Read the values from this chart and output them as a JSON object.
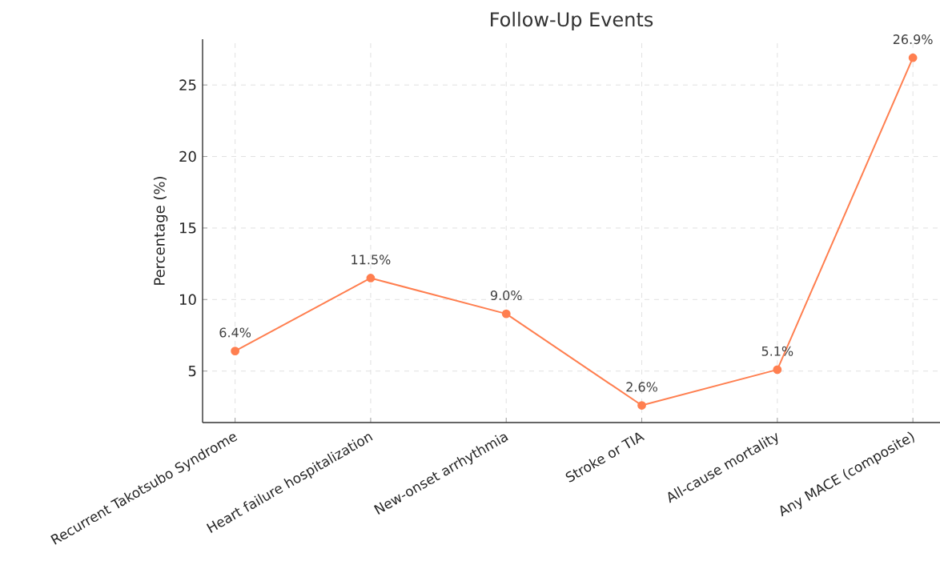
{
  "chart_data": {
    "type": "line",
    "title": "Follow-Up Events",
    "ylabel": "Percentage (%)",
    "categories": [
      "Recurrent Takotsubo Syndrome",
      "Heart failure hospitalization",
      "New-onset arrhythmia",
      "Stroke or TIA",
      "All-cause mortality",
      "Any MACE (composite)"
    ],
    "values": [
      6.4,
      11.5,
      9.0,
      2.6,
      5.1,
      26.9
    ],
    "value_labels": [
      "6.4%",
      "11.5%",
      "9.0%",
      "2.6%",
      "5.1%",
      "26.9%"
    ],
    "color": "#ff7f50",
    "marker": "circle",
    "line_style": "solid",
    "grid": true,
    "ylim": [
      1.4,
      28.2
    ],
    "yticks": [
      5,
      10,
      15,
      20,
      25
    ]
  }
}
